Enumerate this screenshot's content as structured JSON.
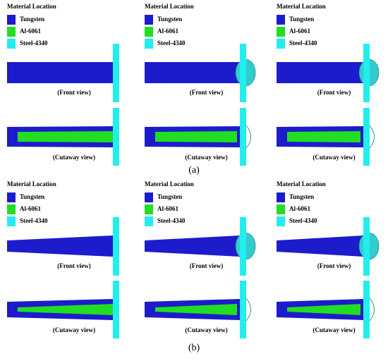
{
  "panels": [
    {
      "caption": "(a)",
      "columns": [
        {
          "legend": {
            "title": "Material Location",
            "items": [
              "Tungsten",
              "Al-6061",
              "Steel-4340"
            ]
          },
          "front_label": "(Front view)",
          "cutaway_label": "(Cutaway view)"
        },
        {
          "legend": {
            "title": "Material Location",
            "items": [
              "Tungsten",
              "Al-6061",
              "Steel-4340"
            ]
          },
          "front_label": "(Front view)",
          "cutaway_label": "(Cutaway view)"
        },
        {
          "legend": {
            "title": "Material Location",
            "items": [
              "Tungsten",
              "Al-6061",
              "Steel-4340"
            ]
          },
          "front_label": "(Front view)",
          "cutaway_label": "(Cutaway view)"
        }
      ]
    },
    {
      "caption": "(b)",
      "columns": [
        {
          "legend": {
            "title": "Material Location",
            "items": [
              "Tungsten",
              "Al-6061",
              "Steel-4340"
            ]
          },
          "front_label": "(Front view)",
          "cutaway_label": "(Cutaway view)"
        },
        {
          "legend": {
            "title": "Material Location",
            "items": [
              "Tungsten",
              "Al-6061",
              "Steel-4340"
            ]
          },
          "front_label": "(Front view)",
          "cutaway_label": "(Cutaway view)"
        },
        {
          "legend": {
            "title": "Material Location",
            "items": [
              "Tungsten",
              "Al-6061",
              "Steel-4340"
            ]
          },
          "front_label": "(Front view)",
          "cutaway_label": "(Cutaway view)"
        }
      ]
    }
  ]
}
